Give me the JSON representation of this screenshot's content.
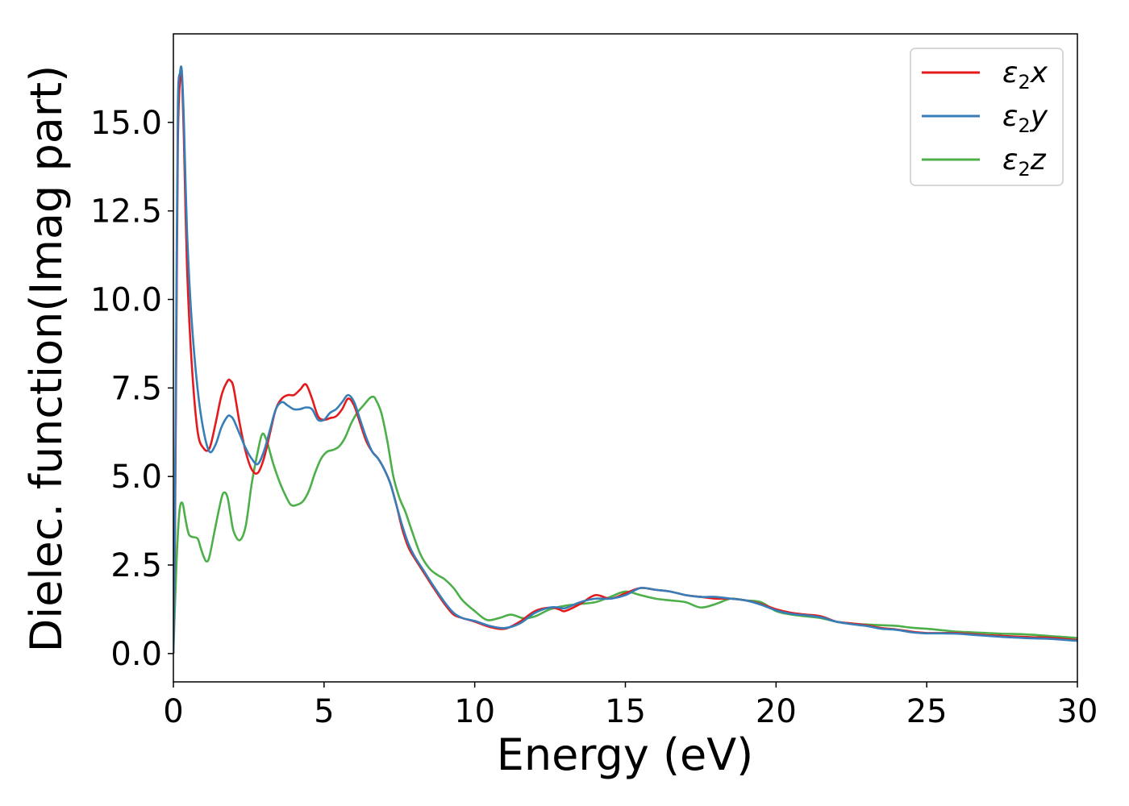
{
  "chart_data": {
    "type": "line",
    "title": "",
    "xlabel": "Energy (eV)",
    "ylabel": "Dielec. function(Imag part)",
    "xlim": [
      0,
      30
    ],
    "ylim": [
      -0.8,
      17.5
    ],
    "xticks": [
      0,
      5,
      10,
      15,
      20,
      25,
      30
    ],
    "xtick_labels": [
      "0",
      "5",
      "10",
      "15",
      "20",
      "25",
      "30"
    ],
    "yticks": [
      0.0,
      2.5,
      5.0,
      7.5,
      10.0,
      12.5,
      15.0
    ],
    "ytick_labels": [
      "0.0",
      "2.5",
      "5.0",
      "7.5",
      "10.0",
      "12.5",
      "15.0"
    ],
    "grid": false,
    "legend_position": "top-right",
    "series": [
      {
        "name": "ε₂x",
        "name_base": "ε",
        "name_sub": "2",
        "name_var": "x",
        "color": "#e41a1c",
        "x": [
          0,
          0.05,
          0.1,
          0.15,
          0.22,
          0.28,
          0.35,
          0.45,
          0.6,
          0.8,
          1.0,
          1.2,
          1.4,
          1.6,
          1.8,
          1.9,
          2.0,
          2.2,
          2.4,
          2.6,
          2.8,
          3.0,
          3.2,
          3.4,
          3.6,
          3.8,
          4.0,
          4.2,
          4.4,
          4.6,
          4.8,
          5.0,
          5.2,
          5.4,
          5.6,
          5.8,
          6.0,
          6.2,
          6.4,
          6.6,
          6.8,
          7.0,
          7.2,
          7.4,
          7.6,
          7.8,
          8.0,
          8.3,
          8.6,
          9.0,
          9.3,
          9.6,
          10.0,
          10.5,
          11.0,
          11.5,
          12.0,
          12.5,
          12.8,
          13.0,
          13.5,
          14.0,
          14.5,
          15.0,
          15.5,
          16.0,
          16.5,
          17.0,
          17.5,
          18.0,
          18.5,
          19.0,
          19.5,
          20.0,
          20.5,
          21.0,
          21.5,
          22.0,
          22.5,
          23.0,
          23.5,
          24.0,
          24.5,
          25.0,
          25.5,
          26.0,
          26.5,
          27.0,
          27.5,
          28.0,
          28.5,
          29.0,
          29.5,
          30.0
        ],
        "y": [
          0.0,
          3.0,
          9.0,
          14.5,
          16.2,
          16.3,
          14.5,
          11.0,
          8.3,
          6.3,
          5.8,
          5.8,
          6.5,
          7.3,
          7.7,
          7.7,
          7.5,
          6.5,
          5.7,
          5.2,
          5.1,
          5.5,
          6.2,
          6.9,
          7.2,
          7.3,
          7.3,
          7.45,
          7.6,
          7.2,
          6.7,
          6.6,
          6.65,
          6.7,
          6.9,
          7.2,
          7.0,
          6.5,
          6.0,
          5.7,
          5.5,
          5.2,
          4.8,
          4.2,
          3.5,
          3.0,
          2.7,
          2.3,
          1.9,
          1.4,
          1.1,
          1.0,
          0.9,
          0.75,
          0.7,
          0.9,
          1.2,
          1.3,
          1.25,
          1.2,
          1.4,
          1.65,
          1.55,
          1.7,
          1.85,
          1.8,
          1.75,
          1.65,
          1.6,
          1.55,
          1.55,
          1.5,
          1.4,
          1.25,
          1.15,
          1.1,
          1.05,
          0.9,
          0.85,
          0.8,
          0.72,
          0.68,
          0.62,
          0.58,
          0.58,
          0.58,
          0.55,
          0.52,
          0.5,
          0.48,
          0.46,
          0.45,
          0.42,
          0.38
        ]
      },
      {
        "name": "ε₂y",
        "name_base": "ε",
        "name_sub": "2",
        "name_var": "y",
        "color": "#377eb8",
        "x": [
          0,
          0.05,
          0.1,
          0.15,
          0.22,
          0.28,
          0.35,
          0.45,
          0.6,
          0.8,
          1.0,
          1.2,
          1.4,
          1.6,
          1.8,
          1.9,
          2.0,
          2.2,
          2.4,
          2.6,
          2.8,
          3.0,
          3.2,
          3.4,
          3.6,
          3.8,
          4.0,
          4.2,
          4.4,
          4.6,
          4.8,
          5.0,
          5.2,
          5.4,
          5.6,
          5.8,
          6.0,
          6.2,
          6.4,
          6.6,
          6.8,
          7.0,
          7.2,
          7.4,
          7.6,
          7.8,
          8.0,
          8.3,
          8.6,
          9.0,
          9.3,
          9.6,
          10.0,
          10.5,
          11.0,
          11.5,
          12.0,
          12.5,
          12.8,
          13.0,
          13.5,
          14.0,
          14.5,
          15.0,
          15.5,
          16.0,
          16.5,
          17.0,
          17.5,
          18.0,
          18.5,
          19.0,
          19.5,
          20.0,
          20.5,
          21.0,
          21.5,
          22.0,
          22.5,
          23.0,
          23.5,
          24.0,
          24.5,
          25.0,
          25.5,
          26.0,
          26.5,
          27.0,
          27.5,
          28.0,
          28.5,
          29.0,
          29.5,
          30.0
        ],
        "y": [
          0.0,
          3.5,
          10.0,
          15.5,
          16.4,
          16.45,
          15.0,
          12.0,
          9.5,
          7.5,
          6.3,
          5.7,
          5.9,
          6.4,
          6.7,
          6.7,
          6.6,
          6.2,
          5.8,
          5.5,
          5.35,
          5.7,
          6.3,
          6.9,
          7.1,
          7.0,
          6.9,
          6.9,
          6.95,
          6.9,
          6.6,
          6.6,
          6.8,
          6.9,
          7.1,
          7.3,
          7.1,
          6.6,
          6.1,
          5.7,
          5.5,
          5.2,
          4.8,
          4.2,
          3.6,
          3.1,
          2.75,
          2.35,
          1.95,
          1.45,
          1.15,
          1.0,
          0.92,
          0.78,
          0.72,
          0.85,
          1.15,
          1.3,
          1.3,
          1.28,
          1.45,
          1.55,
          1.55,
          1.65,
          1.85,
          1.8,
          1.75,
          1.65,
          1.6,
          1.6,
          1.55,
          1.5,
          1.38,
          1.22,
          1.12,
          1.08,
          1.02,
          0.9,
          0.83,
          0.78,
          0.7,
          0.67,
          0.6,
          0.57,
          0.57,
          0.56,
          0.53,
          0.5,
          0.47,
          0.45,
          0.43,
          0.42,
          0.39,
          0.36
        ]
      },
      {
        "name": "ε₂z",
        "name_base": "ε",
        "name_sub": "2",
        "name_var": "z",
        "color": "#4daf4a",
        "x": [
          0,
          0.1,
          0.2,
          0.3,
          0.4,
          0.5,
          0.6,
          0.8,
          0.9,
          1.0,
          1.1,
          1.2,
          1.4,
          1.6,
          1.7,
          1.8,
          1.9,
          2.0,
          2.2,
          2.4,
          2.6,
          2.8,
          2.95,
          3.1,
          3.3,
          3.5,
          3.7,
          3.9,
          4.1,
          4.3,
          4.5,
          4.7,
          4.9,
          5.1,
          5.3,
          5.5,
          5.7,
          5.9,
          6.1,
          6.3,
          6.5,
          6.6,
          6.7,
          6.9,
          7.1,
          7.3,
          7.5,
          7.7,
          7.9,
          8.2,
          8.5,
          8.8,
          9.0,
          9.3,
          9.6,
          10.0,
          10.4,
          10.8,
          11.2,
          11.6,
          12.0,
          12.5,
          13.0,
          13.5,
          14.0,
          14.5,
          15.0,
          15.5,
          16.0,
          16.5,
          17.0,
          17.5,
          18.0,
          18.5,
          19.0,
          19.5,
          20.0,
          20.5,
          21.0,
          21.5,
          22.0,
          22.5,
          23.0,
          23.5,
          24.0,
          24.5,
          25.0,
          25.5,
          26.0,
          26.5,
          27.0,
          27.5,
          28.0,
          28.5,
          29.0,
          29.5,
          30.0
        ],
        "y": [
          0.0,
          2.5,
          4.0,
          4.25,
          3.8,
          3.4,
          3.3,
          3.25,
          3.0,
          2.75,
          2.6,
          2.75,
          3.6,
          4.4,
          4.55,
          4.4,
          3.9,
          3.45,
          3.2,
          3.6,
          4.8,
          5.7,
          6.2,
          6.0,
          5.4,
          4.9,
          4.5,
          4.2,
          4.2,
          4.3,
          4.6,
          5.1,
          5.5,
          5.7,
          5.75,
          5.85,
          6.1,
          6.5,
          6.8,
          7.0,
          7.2,
          7.25,
          7.2,
          6.8,
          6.0,
          5.0,
          4.4,
          4.0,
          3.5,
          2.8,
          2.4,
          2.2,
          2.1,
          1.85,
          1.5,
          1.2,
          0.95,
          1.0,
          1.1,
          1.0,
          1.05,
          1.25,
          1.35,
          1.4,
          1.45,
          1.6,
          1.75,
          1.65,
          1.55,
          1.5,
          1.45,
          1.3,
          1.4,
          1.55,
          1.5,
          1.45,
          1.2,
          1.1,
          1.05,
          1.0,
          0.9,
          0.85,
          0.82,
          0.8,
          0.78,
          0.73,
          0.7,
          0.66,
          0.62,
          0.6,
          0.58,
          0.56,
          0.55,
          0.53,
          0.5,
          0.47,
          0.44
        ]
      }
    ]
  }
}
